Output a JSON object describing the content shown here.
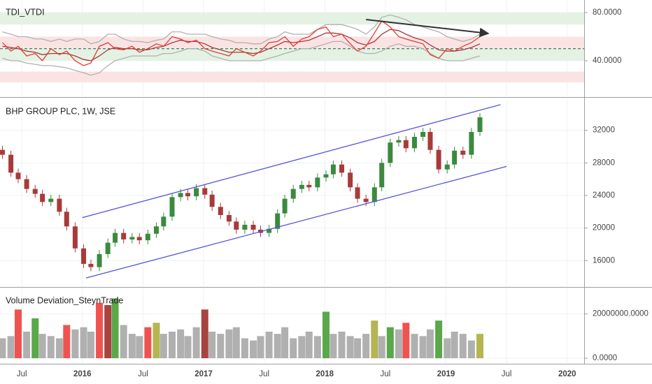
{
  "chart_data": {
    "x": [
      2015.34,
      2015.41,
      2015.47,
      2015.54,
      2015.61,
      2015.67,
      2015.74,
      2015.81,
      2015.87,
      2015.94,
      2016.01,
      2016.07,
      2016.14,
      2016.21,
      2016.27,
      2016.34,
      2016.41,
      2016.47,
      2016.54,
      2016.61,
      2016.67,
      2016.74,
      2016.81,
      2016.87,
      2016.94,
      2017.01,
      2017.07,
      2017.14,
      2017.21,
      2017.27,
      2017.34,
      2017.41,
      2017.47,
      2017.54,
      2017.61,
      2017.67,
      2017.74,
      2017.81,
      2017.87,
      2017.94,
      2018.01,
      2018.07,
      2018.14,
      2018.21,
      2018.27,
      2018.34,
      2018.41,
      2018.47,
      2018.54,
      2018.61,
      2018.67,
      2018.74,
      2018.81,
      2018.87,
      2018.94,
      2019.01,
      2019.07,
      2019.14,
      2019.21,
      2019.28
    ],
    "xlim": [
      2015.32,
      2020.14
    ],
    "xticks": [
      {
        "value": 2015.5,
        "label": "Jul"
      },
      2016,
      {
        "value": 2016.5,
        "label": "Jul"
      },
      2017,
      {
        "value": 2017.5,
        "label": "Jul"
      },
      2018,
      {
        "value": 2018.5,
        "label": "Jul"
      },
      2019,
      {
        "value": 2019.5,
        "label": "Jul"
      },
      2020
    ],
    "grid": true,
    "panes": [
      {
        "type": "line",
        "title": "TDI_VTDI",
        "ylim": [
          11,
          90.4
        ],
        "yticks": [
          {
            "value": 80,
            "label": "80.0000"
          },
          {
            "value": 40,
            "label": "40.0000"
          }
        ],
        "bands": [
          {
            "range": [
              70,
              80
            ],
            "color": "#e4f2e4"
          },
          {
            "range": [
              51,
              60
            ],
            "color": "#fbe3e3"
          },
          {
            "range": [
              40,
              51
            ],
            "color": "#e4f2e4"
          },
          {
            "range": [
              22,
              31
            ],
            "color": "#fbe3e3"
          }
        ],
        "midline": 50,
        "series": [
          {
            "color": "#b0b0b0",
            "values": [
              64,
              62,
              60,
              60,
              58,
              58,
              56,
              58,
              56,
              58,
              58,
              54,
              56,
              62,
              62,
              58,
              56,
              56,
              55,
              57,
              58,
              64,
              64,
              62,
              62,
              62,
              60,
              58,
              57,
              55,
              55,
              54,
              54,
              58,
              60,
              64,
              62,
              62,
              62,
              66,
              70,
              70,
              70,
              68,
              66,
              62,
              68,
              76,
              78,
              76,
              74,
              70,
              68,
              66,
              64,
              60,
              58,
              56,
              58,
              62
            ]
          },
          {
            "color": "#b0b0b0",
            "values": [
              42,
              40,
              40,
              38,
              37,
              36,
              36,
              35,
              34,
              32,
              30,
              28,
              30,
              36,
              40,
              42,
              44,
              44,
              44,
              44,
              46,
              46,
              48,
              50,
              50,
              48,
              44,
              42,
              40,
              40,
              40,
              40,
              40,
              42,
              44,
              46,
              48,
              50,
              50,
              52,
              54,
              56,
              56,
              52,
              48,
              46,
              46,
              48,
              52,
              54,
              52,
              52,
              50,
              46,
              42,
              40,
              40,
              40,
              42,
              44
            ]
          },
          {
            "color": "#a33a3a",
            "values": [
              52,
              51,
              50,
              48,
              47,
              45,
              46,
              46,
              46,
              44,
              41,
              40,
              44,
              49,
              51,
              50,
              50,
              49,
              49,
              51,
              52,
              55,
              57,
              56,
              56,
              54,
              51,
              49,
              47,
              47,
              47,
              46,
              47,
              50,
              53,
              56,
              55,
              56,
              57,
              60,
              63,
              63,
              62,
              59,
              55,
              53,
              56,
              62,
              66,
              65,
              62,
              59,
              57,
              53,
              49,
              48,
              48,
              49,
              51,
              54
            ]
          },
          {
            "color": "#e53935",
            "values": [
              55,
              48,
              52,
              44,
              46,
              40,
              50,
              45,
              48,
              40,
              36,
              38,
              52,
              55,
              50,
              49,
              52,
              47,
              50,
              54,
              52,
              60,
              58,
              55,
              57,
              50,
              48,
              46,
              44,
              50,
              47,
              44,
              48,
              55,
              56,
              60,
              52,
              58,
              60,
              66,
              68,
              60,
              62,
              54,
              48,
              52,
              63,
              73,
              68,
              60,
              58,
              56,
              54,
              45,
              42,
              50,
              48,
              52,
              55,
              60
            ]
          }
        ],
        "arrow": {
          "color": "#333",
          "x": [
            2018.34,
            2019.35
          ],
          "y": [
            74.2,
            62.6
          ]
        }
      },
      {
        "type": "candlestick",
        "title": "BHP GROUP PLC, 1W, JSE",
        "ylim": [
          12850,
          35830
        ],
        "yticks": [
          16000,
          20000,
          24000,
          28000,
          32000
        ],
        "up_color": "#3b8a3e",
        "down_color": "#a83a3a",
        "open": [
          29600,
          29000,
          26800,
          26000,
          24800,
          24200,
          23200,
          23600,
          22000,
          20200,
          17500,
          15600,
          15200,
          16800,
          18200,
          19400,
          18600,
          18900,
          18500,
          19300,
          20200,
          21400,
          23800,
          24300,
          23900,
          24900,
          24100,
          22600,
          21600,
          20800,
          19800,
          20400,
          19800,
          19400,
          19900,
          21800,
          23600,
          24800,
          25300,
          25000,
          26200,
          26600,
          27800,
          26800,
          25000,
          23600,
          23200,
          25000,
          28000,
          30500,
          30800,
          29800,
          31200,
          31800,
          29600,
          27200,
          27800,
          29500,
          29000,
          31800
        ],
        "high": [
          30100,
          29500,
          27300,
          26500,
          25300,
          24700,
          24100,
          24100,
          22500,
          20700,
          18000,
          16100,
          17300,
          18700,
          19900,
          19900,
          19400,
          19400,
          19800,
          20700,
          21900,
          24300,
          24800,
          24800,
          25400,
          25400,
          24600,
          23100,
          22100,
          21300,
          20900,
          20900,
          20300,
          20400,
          22300,
          24100,
          25300,
          25800,
          25800,
          26700,
          27100,
          28300,
          28300,
          27300,
          25500,
          24100,
          25500,
          28500,
          31000,
          31300,
          31300,
          31700,
          32300,
          32300,
          30100,
          28300,
          30000,
          30000,
          32300,
          34100
        ],
        "low": [
          28500,
          26300,
          25500,
          24300,
          23700,
          22700,
          22700,
          21500,
          19700,
          17000,
          15100,
          14700,
          14700,
          16300,
          17700,
          18100,
          18100,
          18000,
          18000,
          18800,
          19700,
          20900,
          23300,
          23400,
          23400,
          23600,
          22100,
          21100,
          20300,
          19300,
          19300,
          19300,
          18900,
          18900,
          19400,
          21300,
          23100,
          24300,
          24500,
          24500,
          25700,
          26100,
          26300,
          24500,
          23100,
          22700,
          22700,
          24500,
          27500,
          30000,
          29300,
          29300,
          30700,
          29100,
          26700,
          26700,
          27300,
          28500,
          28500,
          31300
        ],
        "close": [
          29000,
          26800,
          26000,
          24800,
          24200,
          23200,
          23600,
          22000,
          20200,
          17500,
          15600,
          15200,
          16800,
          18200,
          19400,
          18600,
          18900,
          18500,
          19300,
          20200,
          21400,
          23800,
          24300,
          23900,
          24900,
          24100,
          22600,
          21600,
          20800,
          19800,
          20400,
          19800,
          19400,
          19900,
          21800,
          23600,
          24800,
          25300,
          25000,
          26200,
          26600,
          27800,
          26800,
          25000,
          23600,
          23200,
          25000,
          28000,
          30500,
          30800,
          29800,
          31200,
          31800,
          29600,
          27200,
          27800,
          29500,
          29000,
          31800,
          33600
        ],
        "trendlines": [
          {
            "color": "#5555dd",
            "x": [
              2016.0,
              2019.45
            ],
            "y": [
              21280,
              35150
            ]
          },
          {
            "color": "#5555dd",
            "x": [
              2016.03,
              2019.5
            ],
            "y": [
              13870,
              27570
            ]
          }
        ]
      },
      {
        "type": "bar",
        "title": "Volume Deviation_SteynTrade",
        "ylim": [
          -2190000,
          31560000
        ],
        "yticks": [
          {
            "value": 20000000,
            "label": "20000000.0000"
          },
          {
            "value": 0,
            "label": "0.0000"
          }
        ],
        "values": [
          9000000,
          10000000,
          22000000,
          12000000,
          18000000,
          11000000,
          10000000,
          9000000,
          15000000,
          13000000,
          14000000,
          12000000,
          25000000,
          24000000,
          27000000,
          15000000,
          11000000,
          10000000,
          14000000,
          16000000,
          11000000,
          12000000,
          13000000,
          10000000,
          14000000,
          22000000,
          12000000,
          11000000,
          13000000,
          14000000,
          9000000,
          8000000,
          10000000,
          12000000,
          11000000,
          14000000,
          9000000,
          10000000,
          12000000,
          10000000,
          21000000,
          11000000,
          12000000,
          10000000,
          9000000,
          11000000,
          17000000,
          10000000,
          14000000,
          13000000,
          16000000,
          11000000,
          10000000,
          13000000,
          17000000,
          9000000,
          12000000,
          11000000,
          8000000,
          11000000
        ],
        "colors": [
          "#b0b0b0",
          "#b0b0b0",
          "#ef5350",
          "#b0b0b0",
          "#5aa84a",
          "#b0b0b0",
          "#b0b0b0",
          "#b0b0b0",
          "#ef5350",
          "#b0b0b0",
          "#b0b0b0",
          "#b0b0b0",
          "#ef5350",
          "#a8433f",
          "#5aa84a",
          "#b0b0b0",
          "#b0b0b0",
          "#b0b0b0",
          "#ef5350",
          "#b5b552",
          "#b0b0b0",
          "#b0b0b0",
          "#b0b0b0",
          "#b0b0b0",
          "#b0b0b0",
          "#a8433f",
          "#b0b0b0",
          "#b0b0b0",
          "#b0b0b0",
          "#b0b0b0",
          "#b0b0b0",
          "#b0b0b0",
          "#b0b0b0",
          "#b0b0b0",
          "#b0b0b0",
          "#b0b0b0",
          "#b0b0b0",
          "#b0b0b0",
          "#b0b0b0",
          "#b0b0b0",
          "#5aa84a",
          "#b0b0b0",
          "#b0b0b0",
          "#b0b0b0",
          "#b0b0b0",
          "#b0b0b0",
          "#b5b552",
          "#b0b0b0",
          "#5aa84a",
          "#b0b0b0",
          "#ef5350",
          "#b0b0b0",
          "#b0b0b0",
          "#b0b0b0",
          "#5aa84a",
          "#b0b0b0",
          "#b0b0b0",
          "#b0b0b0",
          "#b0b0b0",
          "#b5b552"
        ]
      }
    ]
  }
}
